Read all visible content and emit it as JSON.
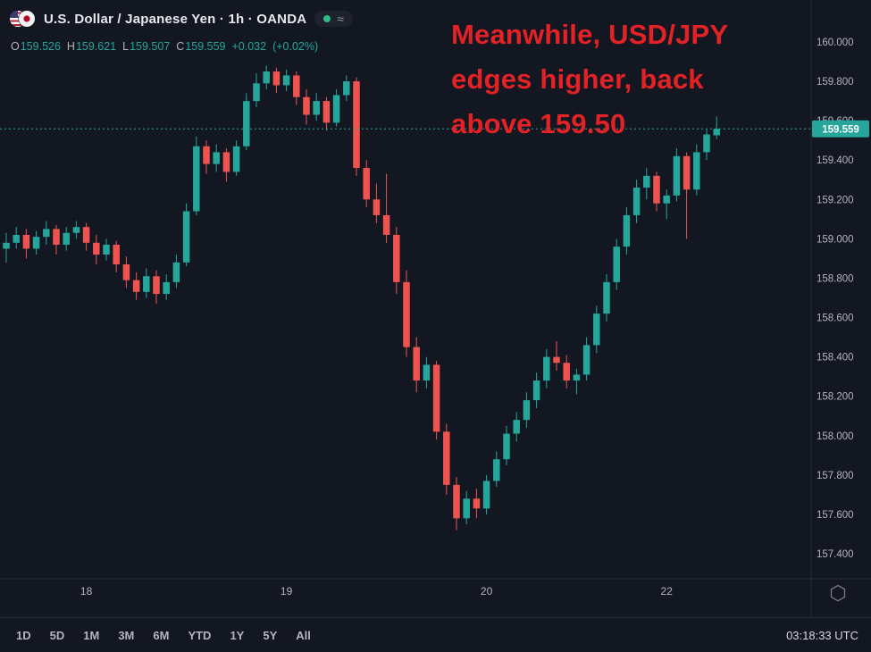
{
  "header": {
    "symbol_title": "U.S. Dollar / Japanese Yen · 1h · OANDA",
    "market_open_color": "#2dbd85",
    "approx_glyph": "≈",
    "ohlc": {
      "o_label": "O",
      "o": "159.526",
      "h_label": "H",
      "h": "159.621",
      "l_label": "L",
      "l": "159.507",
      "c_label": "C",
      "c": "159.559",
      "change": "+0.032",
      "change_pct": "(+0.02%)"
    }
  },
  "annotation": {
    "color": "#e32226",
    "lines": [
      "Meanwhile, USD/JPY",
      "edges higher, back",
      "above 159.50"
    ]
  },
  "chart_data": {
    "type": "candlestick",
    "title": "U.S. Dollar / Japanese Yen · 1h · OANDA",
    "symbol": "USD/JPY",
    "interval": "1h",
    "source": "OANDA",
    "up_color": "#26a69a",
    "down_color": "#ef5350",
    "grid": "off",
    "y_axis": {
      "min": 157.4,
      "max": 160.0,
      "step": 0.2,
      "tick_labels": [
        "160.000",
        "159.800",
        "159.600",
        "159.400",
        "159.200",
        "159.000",
        "158.800",
        "158.600",
        "158.400",
        "158.200",
        "158.000",
        "157.800",
        "157.600",
        "157.400"
      ]
    },
    "x_axis": {
      "tick_labels": [
        {
          "candle_index": 8,
          "text": "18"
        },
        {
          "candle_index": 28,
          "text": "19"
        },
        {
          "candle_index": 48,
          "text": "20"
        },
        {
          "candle_index": 66,
          "text": "22"
        }
      ]
    },
    "last_price": 159.559,
    "last_price_label": "159.559",
    "candles_ohlc": [
      [
        158.95,
        159.03,
        158.88,
        158.98
      ],
      [
        158.98,
        159.06,
        158.95,
        159.02
      ],
      [
        159.02,
        159.05,
        158.9,
        158.95
      ],
      [
        158.95,
        159.04,
        158.92,
        159.01
      ],
      [
        159.01,
        159.09,
        158.97,
        159.05
      ],
      [
        159.05,
        159.07,
        158.92,
        158.97
      ],
      [
        158.97,
        159.06,
        158.94,
        159.03
      ],
      [
        159.03,
        159.09,
        159.0,
        159.06
      ],
      [
        159.06,
        159.08,
        158.94,
        158.98
      ],
      [
        158.98,
        159.02,
        158.87,
        158.92
      ],
      [
        158.92,
        159.0,
        158.89,
        158.97
      ],
      [
        158.97,
        158.99,
        158.83,
        158.87
      ],
      [
        158.87,
        158.91,
        158.75,
        158.79
      ],
      [
        158.79,
        158.83,
        158.69,
        158.73
      ],
      [
        158.73,
        158.85,
        158.7,
        158.81
      ],
      [
        158.81,
        158.84,
        158.67,
        158.72
      ],
      [
        158.72,
        158.82,
        158.69,
        158.78
      ],
      [
        158.78,
        158.92,
        158.75,
        158.88
      ],
      [
        158.88,
        159.18,
        158.86,
        159.14
      ],
      [
        159.14,
        159.52,
        159.12,
        159.47
      ],
      [
        159.47,
        159.5,
        159.33,
        159.38
      ],
      [
        159.38,
        159.48,
        159.34,
        159.44
      ],
      [
        159.44,
        159.46,
        159.29,
        159.34
      ],
      [
        159.34,
        159.5,
        159.32,
        159.47
      ],
      [
        159.47,
        159.74,
        159.45,
        159.7
      ],
      [
        159.7,
        159.84,
        159.67,
        159.79
      ],
      [
        159.79,
        159.88,
        159.76,
        159.85
      ],
      [
        159.85,
        159.87,
        159.74,
        159.78
      ],
      [
        159.78,
        159.86,
        159.75,
        159.83
      ],
      [
        159.83,
        159.85,
        159.68,
        159.72
      ],
      [
        159.72,
        159.76,
        159.58,
        159.63
      ],
      [
        159.63,
        159.74,
        159.6,
        159.7
      ],
      [
        159.7,
        159.72,
        159.55,
        159.59
      ],
      [
        159.59,
        159.76,
        159.57,
        159.73
      ],
      [
        159.73,
        159.83,
        159.7,
        159.8
      ],
      [
        159.8,
        159.82,
        159.32,
        159.36
      ],
      [
        159.36,
        159.4,
        159.16,
        159.2
      ],
      [
        159.2,
        159.28,
        159.08,
        159.12
      ],
      [
        159.12,
        159.33,
        158.98,
        159.02
      ],
      [
        159.02,
        159.06,
        158.72,
        158.78
      ],
      [
        158.78,
        158.84,
        158.4,
        158.45
      ],
      [
        158.45,
        158.5,
        158.22,
        158.28
      ],
      [
        158.28,
        158.4,
        158.24,
        158.36
      ],
      [
        158.36,
        158.38,
        157.98,
        158.02
      ],
      [
        158.02,
        158.06,
        157.7,
        157.75
      ],
      [
        157.75,
        157.79,
        157.52,
        157.58
      ],
      [
        157.58,
        157.72,
        157.55,
        157.68
      ],
      [
        157.68,
        157.73,
        157.58,
        157.63
      ],
      [
        157.63,
        157.8,
        157.6,
        157.77
      ],
      [
        157.77,
        157.92,
        157.74,
        157.88
      ],
      [
        157.88,
        158.05,
        157.85,
        158.01
      ],
      [
        158.01,
        158.12,
        157.97,
        158.08
      ],
      [
        158.08,
        158.22,
        158.04,
        158.18
      ],
      [
        158.18,
        158.32,
        158.14,
        158.28
      ],
      [
        158.28,
        158.44,
        158.24,
        158.4
      ],
      [
        158.4,
        158.48,
        158.33,
        158.37
      ],
      [
        158.37,
        158.41,
        158.24,
        158.28
      ],
      [
        158.28,
        158.34,
        158.21,
        158.31
      ],
      [
        158.31,
        158.5,
        158.28,
        158.46
      ],
      [
        158.46,
        158.66,
        158.42,
        158.62
      ],
      [
        158.62,
        158.82,
        158.58,
        158.78
      ],
      [
        158.78,
        159.0,
        158.74,
        158.96
      ],
      [
        158.96,
        159.16,
        158.92,
        159.12
      ],
      [
        159.12,
        159.3,
        159.08,
        159.26
      ],
      [
        159.26,
        159.36,
        159.2,
        159.32
      ],
      [
        159.32,
        159.34,
        159.14,
        159.18
      ],
      [
        159.18,
        159.25,
        159.1,
        159.22
      ],
      [
        159.22,
        159.46,
        159.19,
        159.42
      ],
      [
        159.42,
        159.44,
        159.0,
        159.25
      ],
      [
        159.25,
        159.48,
        159.22,
        159.44
      ],
      [
        159.44,
        159.56,
        159.4,
        159.53
      ],
      [
        159.526,
        159.621,
        159.507,
        159.559
      ]
    ]
  },
  "footer": {
    "ranges": [
      "1D",
      "5D",
      "1M",
      "3M",
      "6M",
      "YTD",
      "1Y",
      "5Y",
      "All"
    ],
    "clock": "03:18:33 UTC"
  }
}
